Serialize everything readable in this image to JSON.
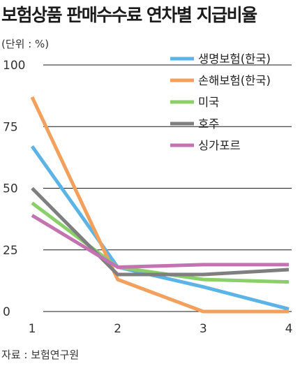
{
  "chart_data": {
    "type": "line",
    "title": "보험상품 판매수수료 연차별 지급비율",
    "unit": "(단위 : %)",
    "source": "자료 : 보험연구원",
    "x": [
      1,
      2,
      3,
      4
    ],
    "ylim": [
      0,
      100
    ],
    "yticks": [
      0,
      25,
      50,
      75,
      100
    ],
    "grid": true,
    "legend_position": "top-right",
    "series": [
      {
        "name": "생명보험(한국)",
        "color": "#5bb3e6",
        "values": [
          67,
          18,
          10,
          1
        ]
      },
      {
        "name": "손해보험(한국)",
        "color": "#f3a05d",
        "values": [
          87,
          13,
          0,
          0
        ]
      },
      {
        "name": "미국",
        "color": "#8bcf6a",
        "values": [
          44,
          18,
          13,
          12
        ]
      },
      {
        "name": "호주",
        "color": "#7f7f7f",
        "values": [
          50,
          15,
          15,
          17
        ]
      },
      {
        "name": "싱가포르",
        "color": "#c473b2",
        "values": [
          39,
          18,
          19,
          19
        ]
      }
    ]
  }
}
